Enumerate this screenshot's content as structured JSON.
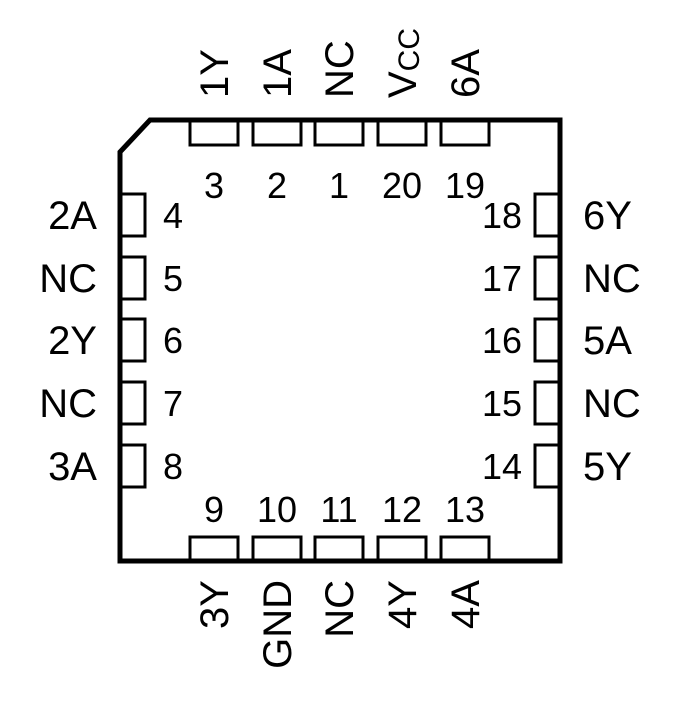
{
  "pins": {
    "top": [
      {
        "number": "3",
        "name": "1Y"
      },
      {
        "number": "2",
        "name": "1A"
      },
      {
        "number": "1",
        "name": "NC"
      },
      {
        "number": "20",
        "name": "V",
        "sub": "CC"
      },
      {
        "number": "19",
        "name": "6A"
      }
    ],
    "bottom": [
      {
        "number": "9",
        "name": "3Y"
      },
      {
        "number": "10",
        "name": "GND"
      },
      {
        "number": "11",
        "name": "NC"
      },
      {
        "number": "12",
        "name": "4Y"
      },
      {
        "number": "13",
        "name": "4A"
      }
    ],
    "left": [
      {
        "number": "4",
        "name": "2A"
      },
      {
        "number": "5",
        "name": "NC"
      },
      {
        "number": "6",
        "name": "2Y"
      },
      {
        "number": "7",
        "name": "NC"
      },
      {
        "number": "8",
        "name": "3A"
      }
    ],
    "right": [
      {
        "number": "18",
        "name": "6Y"
      },
      {
        "number": "17",
        "name": "NC"
      },
      {
        "number": "16",
        "name": "5A"
      },
      {
        "number": "15",
        "name": "NC"
      },
      {
        "number": "14",
        "name": "5Y"
      }
    ]
  },
  "colors": {
    "stroke": "#000000",
    "background": "#ffffff"
  }
}
